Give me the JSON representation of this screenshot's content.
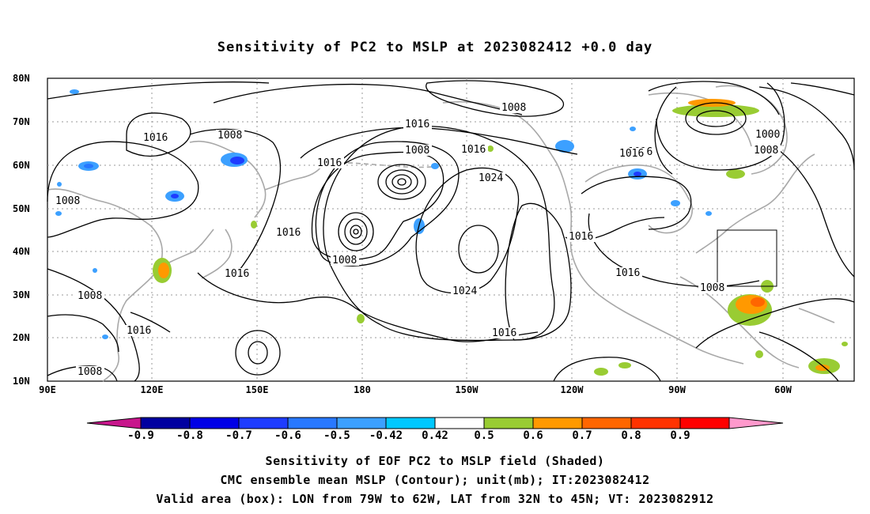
{
  "title": "Sensitivity of PC2 to MSLP at 2023082412 +0.0 day",
  "map": {
    "lat_labels": [
      "80N",
      "70N",
      "60N",
      "50N",
      "40N",
      "30N",
      "20N",
      "10N"
    ],
    "lon_labels": [
      "90E",
      "120E",
      "150E",
      "180",
      "150W",
      "120W",
      "90W",
      "60W"
    ],
    "contour_labels": [
      "1008",
      "1016",
      "1016",
      "1008",
      "1016",
      "1016",
      "1016",
      "1000",
      "1008",
      "1008",
      "1024",
      "1016",
      "1016",
      "1008",
      "1016",
      "1016",
      "1008",
      "1016",
      "1016",
      "1024",
      "1016",
      "1008",
      "1008",
      "1008"
    ],
    "valid_box": {
      "lon_from": "79W",
      "lon_to": "62W",
      "lat_from": "32N",
      "lat_to": "45N"
    }
  },
  "colorbar": {
    "ticks": [
      "-0.9",
      "-0.8",
      "-0.7",
      "-0.6",
      "-0.5",
      "-0.42",
      "0.42",
      "0.5",
      "0.6",
      "0.7",
      "0.8",
      "0.9"
    ],
    "colors": [
      "#c8168c",
      "#0000a0",
      "#0000e6",
      "#1e3cff",
      "#2878ff",
      "#3ca0ff",
      "#00c8ff",
      "#ffffff",
      "#99cc33",
      "#ff9900",
      "#ff6600",
      "#ff3300",
      "#ff0000",
      "#ff99cc"
    ]
  },
  "captions": {
    "line1": "Sensitivity of EOF PC2 to MSLP field (Shaded)",
    "line2": "CMC ensemble mean MSLP (Contour); unit(mb); IT:2023082412",
    "line3": "Valid area (box): LON from 79W to 62W, LAT from 32N to 45N; VT: 2023082912"
  }
}
